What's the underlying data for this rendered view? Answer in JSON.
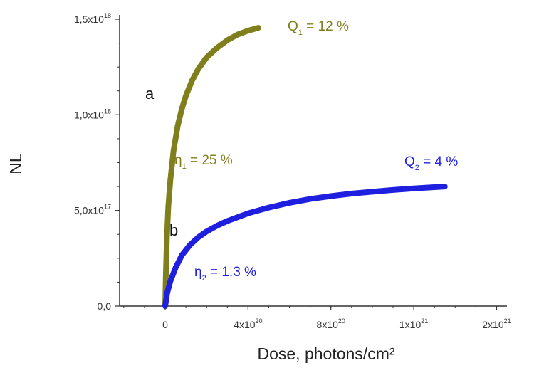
{
  "chart_data": {
    "type": "scatter",
    "title": "",
    "xlabel": "Dose, photons/cm²",
    "ylabel": "NL",
    "xlim": [
      -2.2e+20,
      1.65e+21
    ],
    "ylim": [
      0,
      1.5e+18
    ],
    "grid": false,
    "x_ticks": [
      {
        "value": 0,
        "mantissa": "0",
        "exp": ""
      },
      {
        "value": 4e+20,
        "mantissa": "4x10",
        "exp": "20"
      },
      {
        "value": 8e+20,
        "mantissa": "8x10",
        "exp": "20"
      },
      {
        "value": 1.2e+21,
        "mantissa": "1x10",
        "exp": "21"
      },
      {
        "value": 1.6e+21,
        "mantissa": "2x10",
        "exp": "21"
      }
    ],
    "y_ticks": [
      {
        "value": 0,
        "mantissa": "0,0",
        "exp": ""
      },
      {
        "value": 5e+17,
        "mantissa": "5,0x10",
        "exp": "17"
      },
      {
        "value": 1e+18,
        "mantissa": "1,0x10",
        "exp": "18"
      },
      {
        "value": 1.5e+18,
        "mantissa": "1,5x10",
        "exp": "18"
      }
    ],
    "series": [
      {
        "label": "a",
        "color": "#7f7f1b",
        "points": [
          [
            0,
            0
          ],
          [
            3e+18,
            1.5e+17
          ],
          [
            8e+18,
            3.5e+17
          ],
          [
            1.5e+19,
            5.2e+17
          ],
          [
            2.5e+19,
            6.6e+17
          ],
          [
            4e+19,
            8.1e+17
          ],
          [
            6e+19,
            9.4e+17
          ],
          [
            8e+19,
            1.03e+18
          ],
          [
            1e+20,
            1.1e+18
          ],
          [
            1.3e+20,
            1.18e+18
          ],
          [
            1.6e+20,
            1.24e+18
          ],
          [
            2e+20,
            1.3e+18
          ],
          [
            2.5e+20,
            1.35e+18
          ],
          [
            3e+20,
            1.39e+18
          ],
          [
            3.5e+20,
            1.42e+18
          ],
          [
            4e+20,
            1.44e+18
          ],
          [
            4.5e+20,
            1.455e+18
          ]
        ]
      },
      {
        "label": "b",
        "color": "#1f1fe0",
        "points": [
          [
            0,
            0
          ],
          [
            1e+19,
            7e+16
          ],
          [
            2.5e+19,
            1.3e+17
          ],
          [
            5e+19,
            2e+17
          ],
          [
            8e+19,
            2.65e+17
          ],
          [
            1.2e+20,
            3.2e+17
          ],
          [
            1.6e+20,
            3.6e+17
          ],
          [
            2e+20,
            3.9e+17
          ],
          [
            2.5e+20,
            4.2e+17
          ],
          [
            3e+20,
            4.45e+17
          ],
          [
            4e+20,
            4.85e+17
          ],
          [
            5e+20,
            5.15e+17
          ],
          [
            6e+20,
            5.4e+17
          ],
          [
            7e+20,
            5.6e+17
          ],
          [
            8e+20,
            5.75e+17
          ],
          [
            9e+20,
            5.88e+17
          ],
          [
            1e+21,
            5.98e+17
          ],
          [
            1.1e+21,
            6.07e+17
          ],
          [
            1.2e+21,
            6.15e+17
          ],
          [
            1.35e+21,
            6.25e+17
          ]
        ]
      }
    ],
    "annotations": [
      {
        "id": "q1",
        "main": "Q",
        "sub": "1",
        "rest": " = 12 %",
        "color": "#7f7f1b"
      },
      {
        "id": "eta1",
        "main": "η",
        "sub": "1",
        "rest": " = 25 %",
        "color": "#7f7f1b"
      },
      {
        "id": "q2",
        "main": "Q",
        "sub": "2",
        "rest": " = 4 %",
        "color": "#1f1fe0"
      },
      {
        "id": "eta2",
        "main": "η",
        "sub": "2",
        "rest": " = 1.3 %",
        "color": "#1f1fe0"
      }
    ]
  }
}
